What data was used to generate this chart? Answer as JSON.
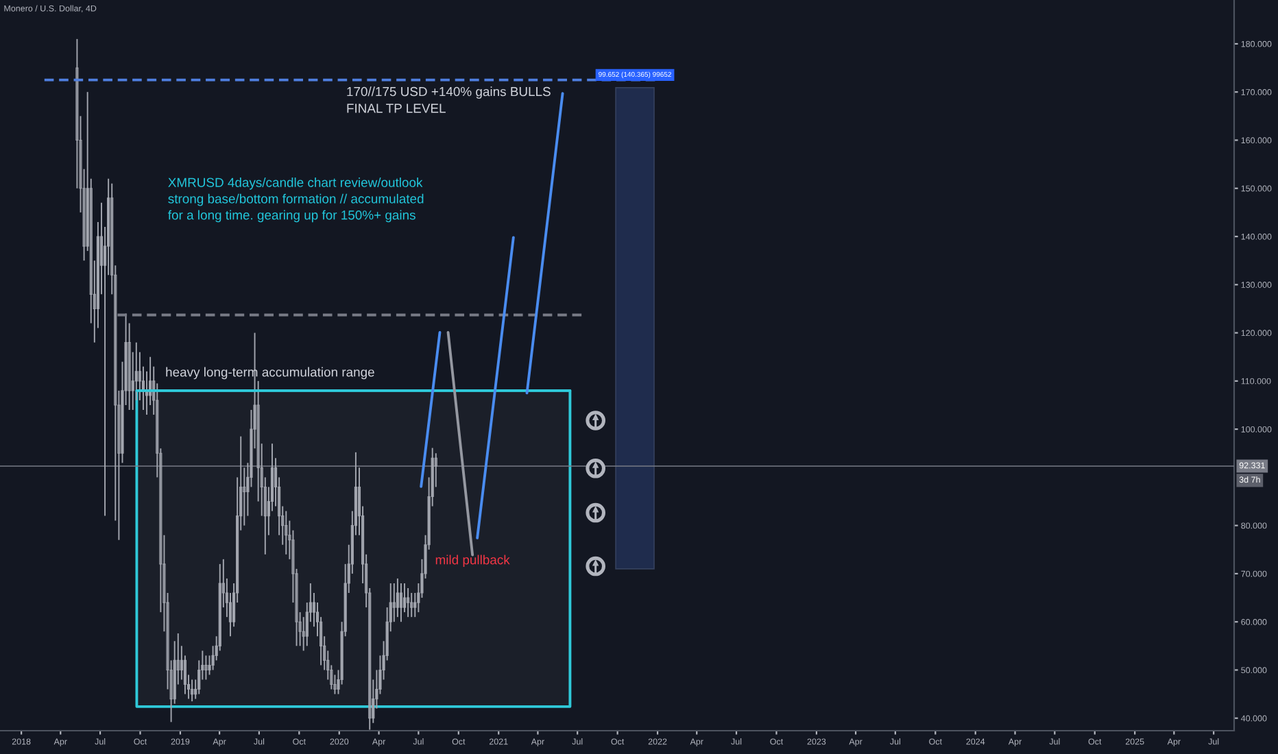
{
  "chart_data": {
    "type": "candlestick",
    "title": "Monero / U.S. Dollar, 4D",
    "color": "#a3a6af",
    "x": [
      "2018-05-09",
      "2018-05-17",
      "2018-05-25",
      "2018-06-02",
      "2018-06-10",
      "2018-06-18",
      "2018-06-26",
      "2018-07-04",
      "2018-07-12",
      "2018-07-20",
      "2018-07-28",
      "2018-08-05",
      "2018-08-13",
      "2018-08-21",
      "2018-08-29",
      "2018-09-06",
      "2018-09-14",
      "2018-09-22",
      "2018-09-30",
      "2018-10-08",
      "2018-10-16",
      "2018-10-24",
      "2018-11-01",
      "2018-11-09",
      "2018-11-17",
      "2018-11-25",
      "2018-12-03",
      "2018-12-11",
      "2018-12-19",
      "2018-12-27",
      "2019-01-04",
      "2019-01-12",
      "2019-01-20",
      "2019-01-28",
      "2019-02-05",
      "2019-02-13",
      "2019-02-21",
      "2019-03-01",
      "2019-03-09",
      "2019-03-17",
      "2019-03-25",
      "2019-04-02",
      "2019-04-10",
      "2019-04-18",
      "2019-04-26",
      "2019-05-04",
      "2019-05-12",
      "2019-05-20",
      "2019-05-28",
      "2019-06-05",
      "2019-06-13",
      "2019-06-21",
      "2019-06-29",
      "2019-07-07",
      "2019-07-15",
      "2019-07-23",
      "2019-07-31",
      "2019-08-08",
      "2019-08-16",
      "2019-08-24",
      "2019-09-01",
      "2019-09-09",
      "2019-09-17",
      "2019-09-25",
      "2019-10-03",
      "2019-10-11",
      "2019-10-19",
      "2019-10-27",
      "2019-11-04",
      "2019-11-12",
      "2019-11-20",
      "2019-11-28",
      "2019-12-06",
      "2019-12-14",
      "2019-12-22",
      "2019-12-30",
      "2020-01-07",
      "2020-01-15",
      "2020-01-23",
      "2020-01-31",
      "2020-02-08",
      "2020-02-16",
      "2020-02-24",
      "2020-03-03",
      "2020-03-11",
      "2020-03-19",
      "2020-03-27",
      "2020-04-04",
      "2020-04-12",
      "2020-04-20",
      "2020-04-28",
      "2020-05-06",
      "2020-05-14",
      "2020-05-22",
      "2020-05-30",
      "2020-06-07",
      "2020-06-15",
      "2020-06-23",
      "2020-07-01",
      "2020-07-09",
      "2020-07-17",
      "2020-07-25",
      "2020-08-02",
      "2020-08-10"
    ],
    "ohlc": [
      [
        175,
        181,
        150,
        160
      ],
      [
        160,
        165,
        145,
        150
      ],
      [
        150,
        154,
        135,
        138
      ],
      [
        138,
        170,
        137,
        150
      ],
      [
        150,
        152,
        122,
        128
      ],
      [
        128,
        135,
        118,
        125
      ],
      [
        125,
        143,
        121,
        140
      ],
      [
        140,
        147,
        128,
        134
      ],
      [
        134,
        142,
        82,
        138
      ],
      [
        138,
        152,
        132,
        148
      ],
      [
        148,
        151,
        128,
        132
      ],
      [
        132,
        134,
        81,
        105
      ],
      [
        105,
        108,
        77,
        95
      ],
      [
        95,
        114,
        93,
        108
      ],
      [
        108,
        124,
        105,
        118
      ],
      [
        118,
        122,
        104,
        108
      ],
      [
        108,
        116,
        104,
        110
      ],
      [
        110,
        118,
        106,
        112
      ],
      [
        112,
        116,
        106,
        110
      ],
      [
        110,
        113,
        104,
        108
      ],
      [
        108,
        112,
        103,
        107
      ],
      [
        107,
        115,
        105,
        110
      ],
      [
        110,
        113,
        103,
        106
      ],
      [
        106,
        109.5,
        90,
        95
      ],
      [
        95,
        96,
        62,
        72
      ],
      [
        72,
        78,
        58,
        64
      ],
      [
        64,
        66,
        46,
        50
      ],
      [
        50,
        52,
        39.2,
        44
      ],
      [
        44,
        56,
        43,
        52
      ],
      [
        52,
        57.6,
        47,
        50
      ],
      [
        50,
        55,
        48,
        52
      ],
      [
        52,
        53,
        45,
        47
      ],
      [
        47,
        49,
        44,
        46
      ],
      [
        46,
        48,
        43.5,
        45
      ],
      [
        45,
        48,
        44,
        46
      ],
      [
        46,
        52,
        45,
        50
      ],
      [
        50,
        54,
        48,
        51
      ],
      [
        51,
        53,
        48,
        50
      ],
      [
        50,
        53,
        49,
        51
      ],
      [
        51,
        55,
        50,
        53
      ],
      [
        53,
        57,
        52,
        55
      ],
      [
        55,
        72,
        54,
        68
      ],
      [
        68,
        73,
        63,
        66
      ],
      [
        66,
        69,
        61,
        64
      ],
      [
        64,
        66,
        57,
        60
      ],
      [
        60,
        68,
        59,
        66
      ],
      [
        66,
        90,
        64,
        82
      ],
      [
        82,
        98.5,
        79,
        88
      ],
      [
        88,
        92,
        80,
        87
      ],
      [
        87,
        93,
        82,
        90
      ],
      [
        90,
        104,
        88,
        100
      ],
      [
        100,
        120,
        96,
        105
      ],
      [
        105,
        110,
        85,
        92
      ],
      [
        92,
        97,
        82,
        88
      ],
      [
        88,
        90,
        74,
        82
      ],
      [
        82,
        88,
        78,
        85
      ],
      [
        85,
        97,
        83,
        92
      ],
      [
        92,
        94,
        84,
        88
      ],
      [
        88,
        90,
        78,
        82
      ],
      [
        82,
        84,
        76,
        80
      ],
      [
        80,
        83,
        74,
        78
      ],
      [
        78,
        81,
        73,
        77
      ],
      [
        77,
        79,
        64,
        70
      ],
      [
        70,
        71,
        55,
        60
      ],
      [
        60,
        62,
        55,
        58
      ],
      [
        58,
        61,
        54,
        57
      ],
      [
        57,
        64,
        55,
        62
      ],
      [
        62,
        68,
        60,
        64
      ],
      [
        64,
        66,
        59,
        62
      ],
      [
        62,
        64,
        57,
        60
      ],
      [
        60,
        61,
        51,
        55
      ],
      [
        55,
        57,
        50,
        52
      ],
      [
        52,
        54,
        48,
        50
      ],
      [
        50,
        51,
        46,
        47
      ],
      [
        47,
        49,
        45,
        46
      ],
      [
        46,
        50,
        45,
        48
      ],
      [
        48,
        60,
        47,
        58
      ],
      [
        58,
        72,
        57,
        68
      ],
      [
        68,
        76,
        66,
        72
      ],
      [
        72,
        83,
        70,
        80
      ],
      [
        80,
        95.2,
        78,
        88
      ],
      [
        88,
        92,
        78,
        82
      ],
      [
        82,
        84,
        68,
        72
      ],
      [
        72,
        74,
        63,
        66
      ],
      [
        66,
        67,
        37.6,
        40
      ],
      [
        40,
        48,
        39,
        44
      ],
      [
        44,
        50,
        42,
        46
      ],
      [
        46,
        53,
        45,
        50
      ],
      [
        50,
        56,
        48,
        53
      ],
      [
        53,
        63,
        52,
        60
      ],
      [
        60,
        68,
        58,
        64
      ],
      [
        64,
        68,
        60,
        63
      ],
      [
        63,
        69,
        61,
        66
      ],
      [
        66,
        68,
        60,
        63
      ],
      [
        63,
        68,
        62,
        65
      ],
      [
        65,
        67,
        61,
        64
      ],
      [
        64,
        66,
        61,
        63
      ],
      [
        63,
        66,
        61,
        64
      ],
      [
        64,
        68,
        62,
        66
      ],
      [
        66,
        73,
        65,
        70
      ],
      [
        70,
        78,
        69,
        76
      ],
      [
        76,
        90,
        75,
        86
      ],
      [
        86,
        96.1,
        84,
        94
      ],
      [
        94,
        95,
        88,
        92.331
      ]
    ],
    "series": [
      {
        "type": "bar",
        "name": "99.652 (140.365) 99652",
        "color": "#1f2c4d",
        "x": [
          "2021-11-10"
        ],
        "values": [
          99.9
        ],
        "base": [
          71.0
        ]
      },
      {
        "type": "line",
        "color": "#4f7fe0",
        "line_style": "dashed",
        "x": [
          "2018-02-23",
          "2022-01-02"
        ],
        "values": [
          172.5,
          172.5
        ]
      },
      {
        "type": "line",
        "color": "#787b86",
        "line_style": "dashed",
        "x": [
          "2018-08-10",
          "2021-07-18"
        ],
        "values": [
          123.7,
          123.7
        ]
      },
      {
        "type": "line",
        "name": "heavy long-term accumulation range",
        "color": "#2fc9d9",
        "x": [
          "2018-09-23",
          "2021-06-14"
        ],
        "values": [
          108.0,
          108.0
        ],
        "lower": [
          42.4,
          42.4
        ],
        "upper": [
          108.0,
          108.0
        ]
      },
      {
        "type": "line",
        "color": "#4a8cf0",
        "x": [
          "2020-07-07",
          "2020-08-19"
        ],
        "values": [
          88.1,
          120.1
        ]
      },
      {
        "type": "line",
        "color": "#9598a1",
        "x": [
          "2020-09-07",
          "2020-11-02"
        ],
        "values": [
          120.1,
          73.9
        ]
      },
      {
        "type": "line",
        "color": "#4a8cf0",
        "x": [
          "2020-11-13",
          "2021-02-04"
        ],
        "values": [
          77.4,
          139.8
        ]
      },
      {
        "type": "line",
        "color": "#4a8cf0",
        "x": [
          "2021-03-07",
          "2021-05-28"
        ],
        "values": [
          107.5,
          169.7
        ]
      }
    ],
    "annotations": [
      "XMRUSD 4days/candle chart review/outlook\nstrong base/bottom formation // accumulated\nfor a long time. gearing up for 150%+ gains",
      {
        "text": "170//175 USD +140% gains BULLS\nFINAL TP LEVEL",
        "x": "2020-01-17",
        "y": 172.5
      },
      {
        "text": "mild pullback",
        "x": "2020-11-02",
        "y": 73.9
      },
      "3d 7h"
    ],
    "ref_lines": [
      {
        "axis": "y",
        "value": 92.331,
        "label": "92.331",
        "color": "#787b86"
      }
    ],
    "xlim": [
      "2017-11-13",
      "2025-08-17"
    ],
    "xticks": [
      {
        "value": "2018-01-01",
        "label": "2018"
      },
      {
        "value": "2018-04-01",
        "label": "Apr"
      },
      {
        "value": "2018-07-01",
        "label": "Jul"
      },
      {
        "value": "2018-10-01",
        "label": "Oct"
      },
      {
        "value": "2019-01-01",
        "label": "2019"
      },
      {
        "value": "2019-04-01",
        "label": "Apr"
      },
      {
        "value": "2019-07-01",
        "label": "Jul"
      },
      {
        "value": "2019-10-01",
        "label": "Oct"
      },
      {
        "value": "2020-01-01",
        "label": "2020"
      },
      {
        "value": "2020-04-01",
        "label": "Apr"
      },
      {
        "value": "2020-07-01",
        "label": "Jul"
      },
      {
        "value": "2020-10-01",
        "label": "Oct"
      },
      {
        "value": "2021-01-01",
        "label": "2021"
      },
      {
        "value": "2021-04-01",
        "label": "Apr"
      },
      {
        "value": "2021-07-01",
        "label": "Jul"
      },
      {
        "value": "2021-10-01",
        "label": "Oct"
      },
      {
        "value": "2022-01-01",
        "label": "2022"
      },
      {
        "value": "2022-04-01",
        "label": "Apr"
      },
      {
        "value": "2022-07-01",
        "label": "Jul"
      },
      {
        "value": "2022-10-01",
        "label": "Oct"
      },
      {
        "value": "2023-01-01",
        "label": "2023"
      },
      {
        "value": "2023-04-01",
        "label": "Apr"
      },
      {
        "value": "2023-07-01",
        "label": "Jul"
      },
      {
        "value": "2023-10-01",
        "label": "Oct"
      },
      {
        "value": "2024-01-01",
        "label": "2024"
      },
      {
        "value": "2024-04-01",
        "label": "Apr"
      },
      {
        "value": "2024-07-01",
        "label": "Jul"
      },
      {
        "value": "2024-10-01",
        "label": "Oct"
      },
      {
        "value": "2025-01-01",
        "label": "2025"
      },
      {
        "value": "2025-04-01",
        "label": "Apr"
      },
      {
        "value": "2025-07-01",
        "label": "Jul"
      }
    ],
    "ylim": [
      37.4,
      189.1
    ],
    "yticks": [
      {
        "value": 40,
        "label": "40.000"
      },
      {
        "value": 50,
        "label": "50.000"
      },
      {
        "value": 60,
        "label": "60.000"
      },
      {
        "value": 70,
        "label": "70.000"
      },
      {
        "value": 80,
        "label": "80.000"
      },
      {
        "value": 100,
        "label": "100.000"
      },
      {
        "value": 110,
        "label": "110.000"
      },
      {
        "value": 120,
        "label": "120.000"
      },
      {
        "value": 130,
        "label": "130.000"
      },
      {
        "value": 140,
        "label": "140.000"
      },
      {
        "value": 150,
        "label": "150.000"
      },
      {
        "value": 160,
        "label": "160.000"
      },
      {
        "value": 170,
        "label": "170.000"
      },
      {
        "value": 180,
        "label": "180.000"
      }
    ]
  }
}
